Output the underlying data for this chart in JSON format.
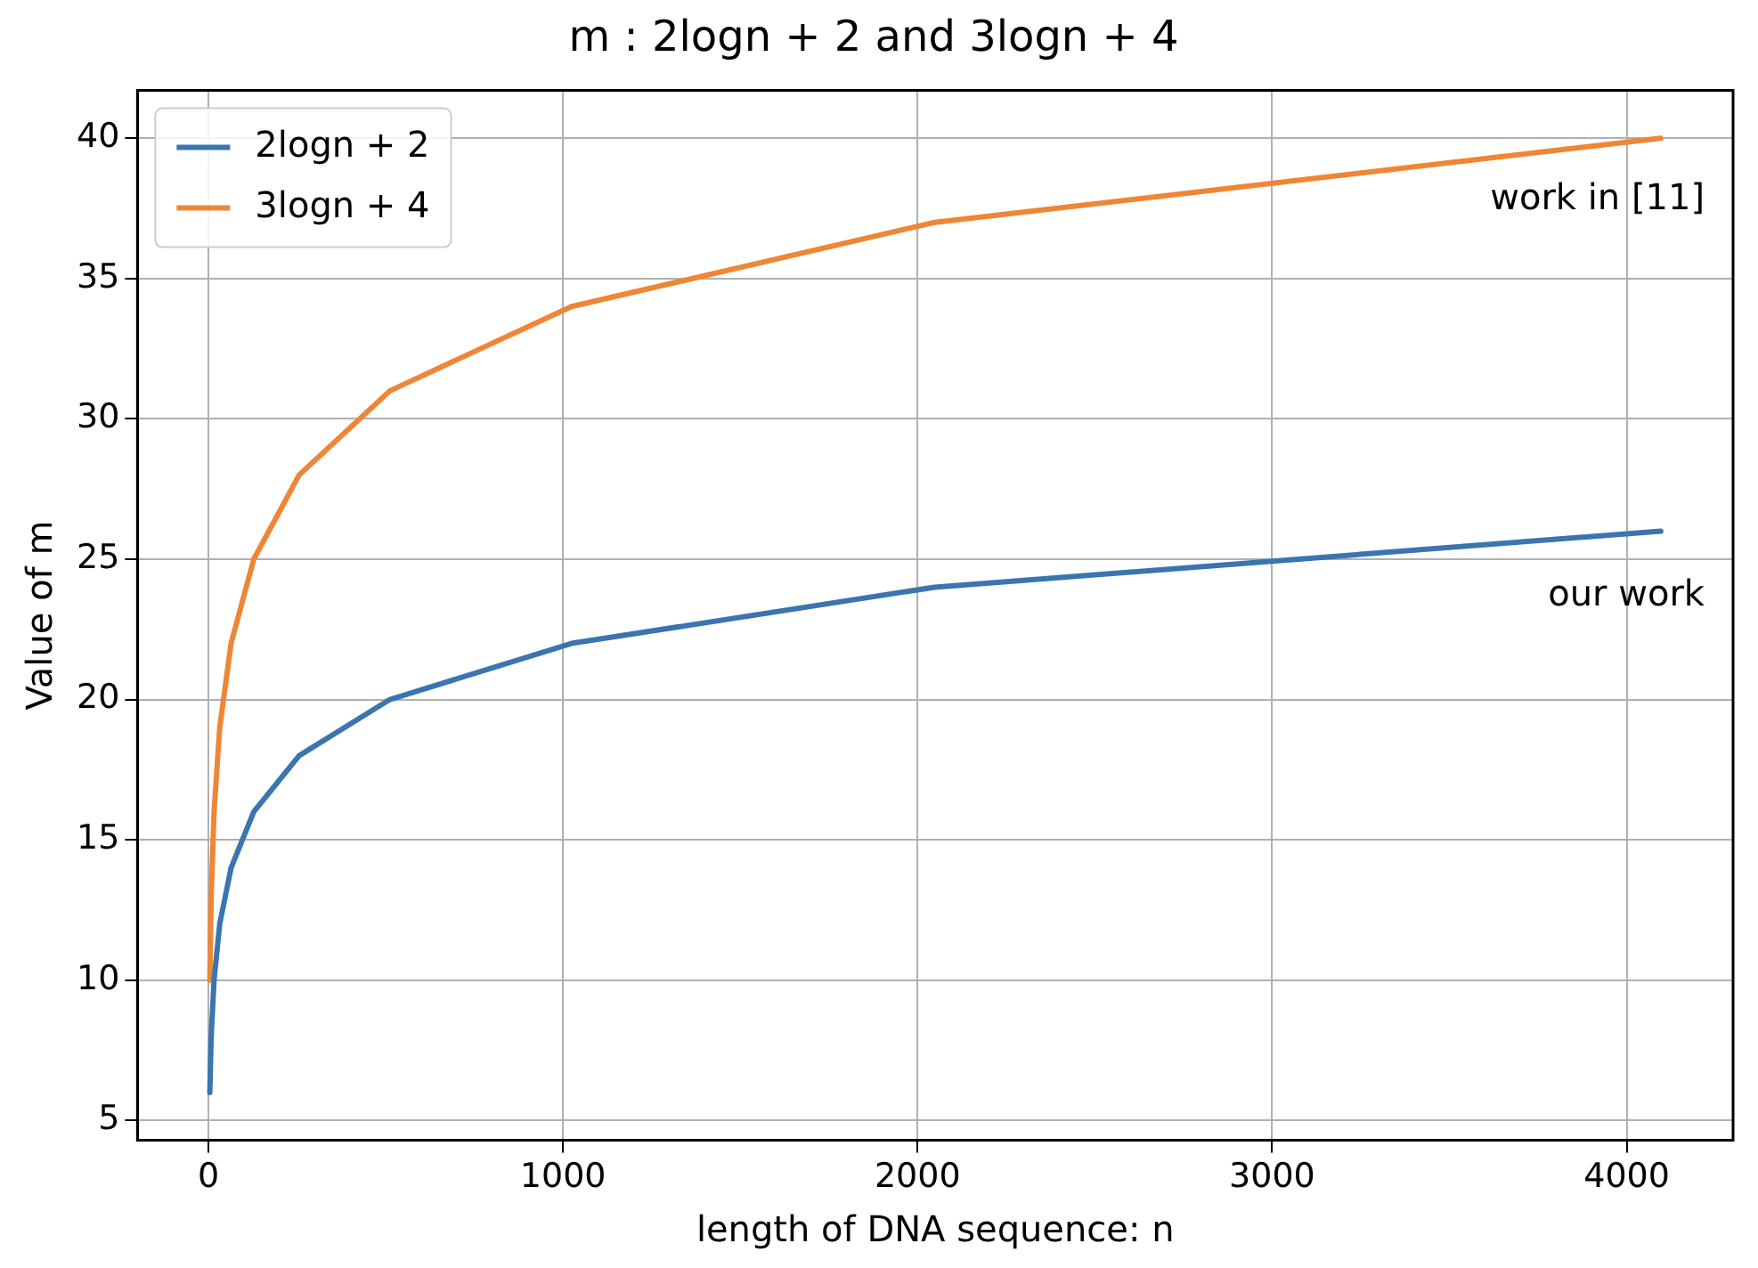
{
  "chart_data": {
    "type": "line",
    "title": "m : 2logn + 2 and 3logn + 4",
    "xlabel": "length of DNA sequence: n",
    "ylabel": "Value of m",
    "x": [
      4,
      8,
      16,
      32,
      64,
      128,
      256,
      512,
      1024,
      2048,
      4096
    ],
    "series": [
      {
        "name": "2logn + 2",
        "color": "#3b75af",
        "values": [
          6,
          8,
          10,
          12,
          14,
          16,
          18,
          20,
          22,
          24,
          26
        ]
      },
      {
        "name": "3logn + 4",
        "color": "#ef8636",
        "values": [
          10,
          13,
          16,
          19,
          22,
          25,
          28,
          31,
          34,
          37,
          40
        ]
      }
    ],
    "xlim": [
      -200,
      4300
    ],
    "xticks": [
      0,
      1000,
      2000,
      3000,
      4000
    ],
    "ylim": [
      4.3,
      41.7
    ],
    "yticks": [
      5,
      10,
      15,
      20,
      25,
      30,
      35,
      40
    ],
    "grid": true,
    "legend": "top left",
    "marker": "none",
    "line_style": "solid",
    "annotations": [
      "work in [11]",
      "our work"
    ]
  }
}
